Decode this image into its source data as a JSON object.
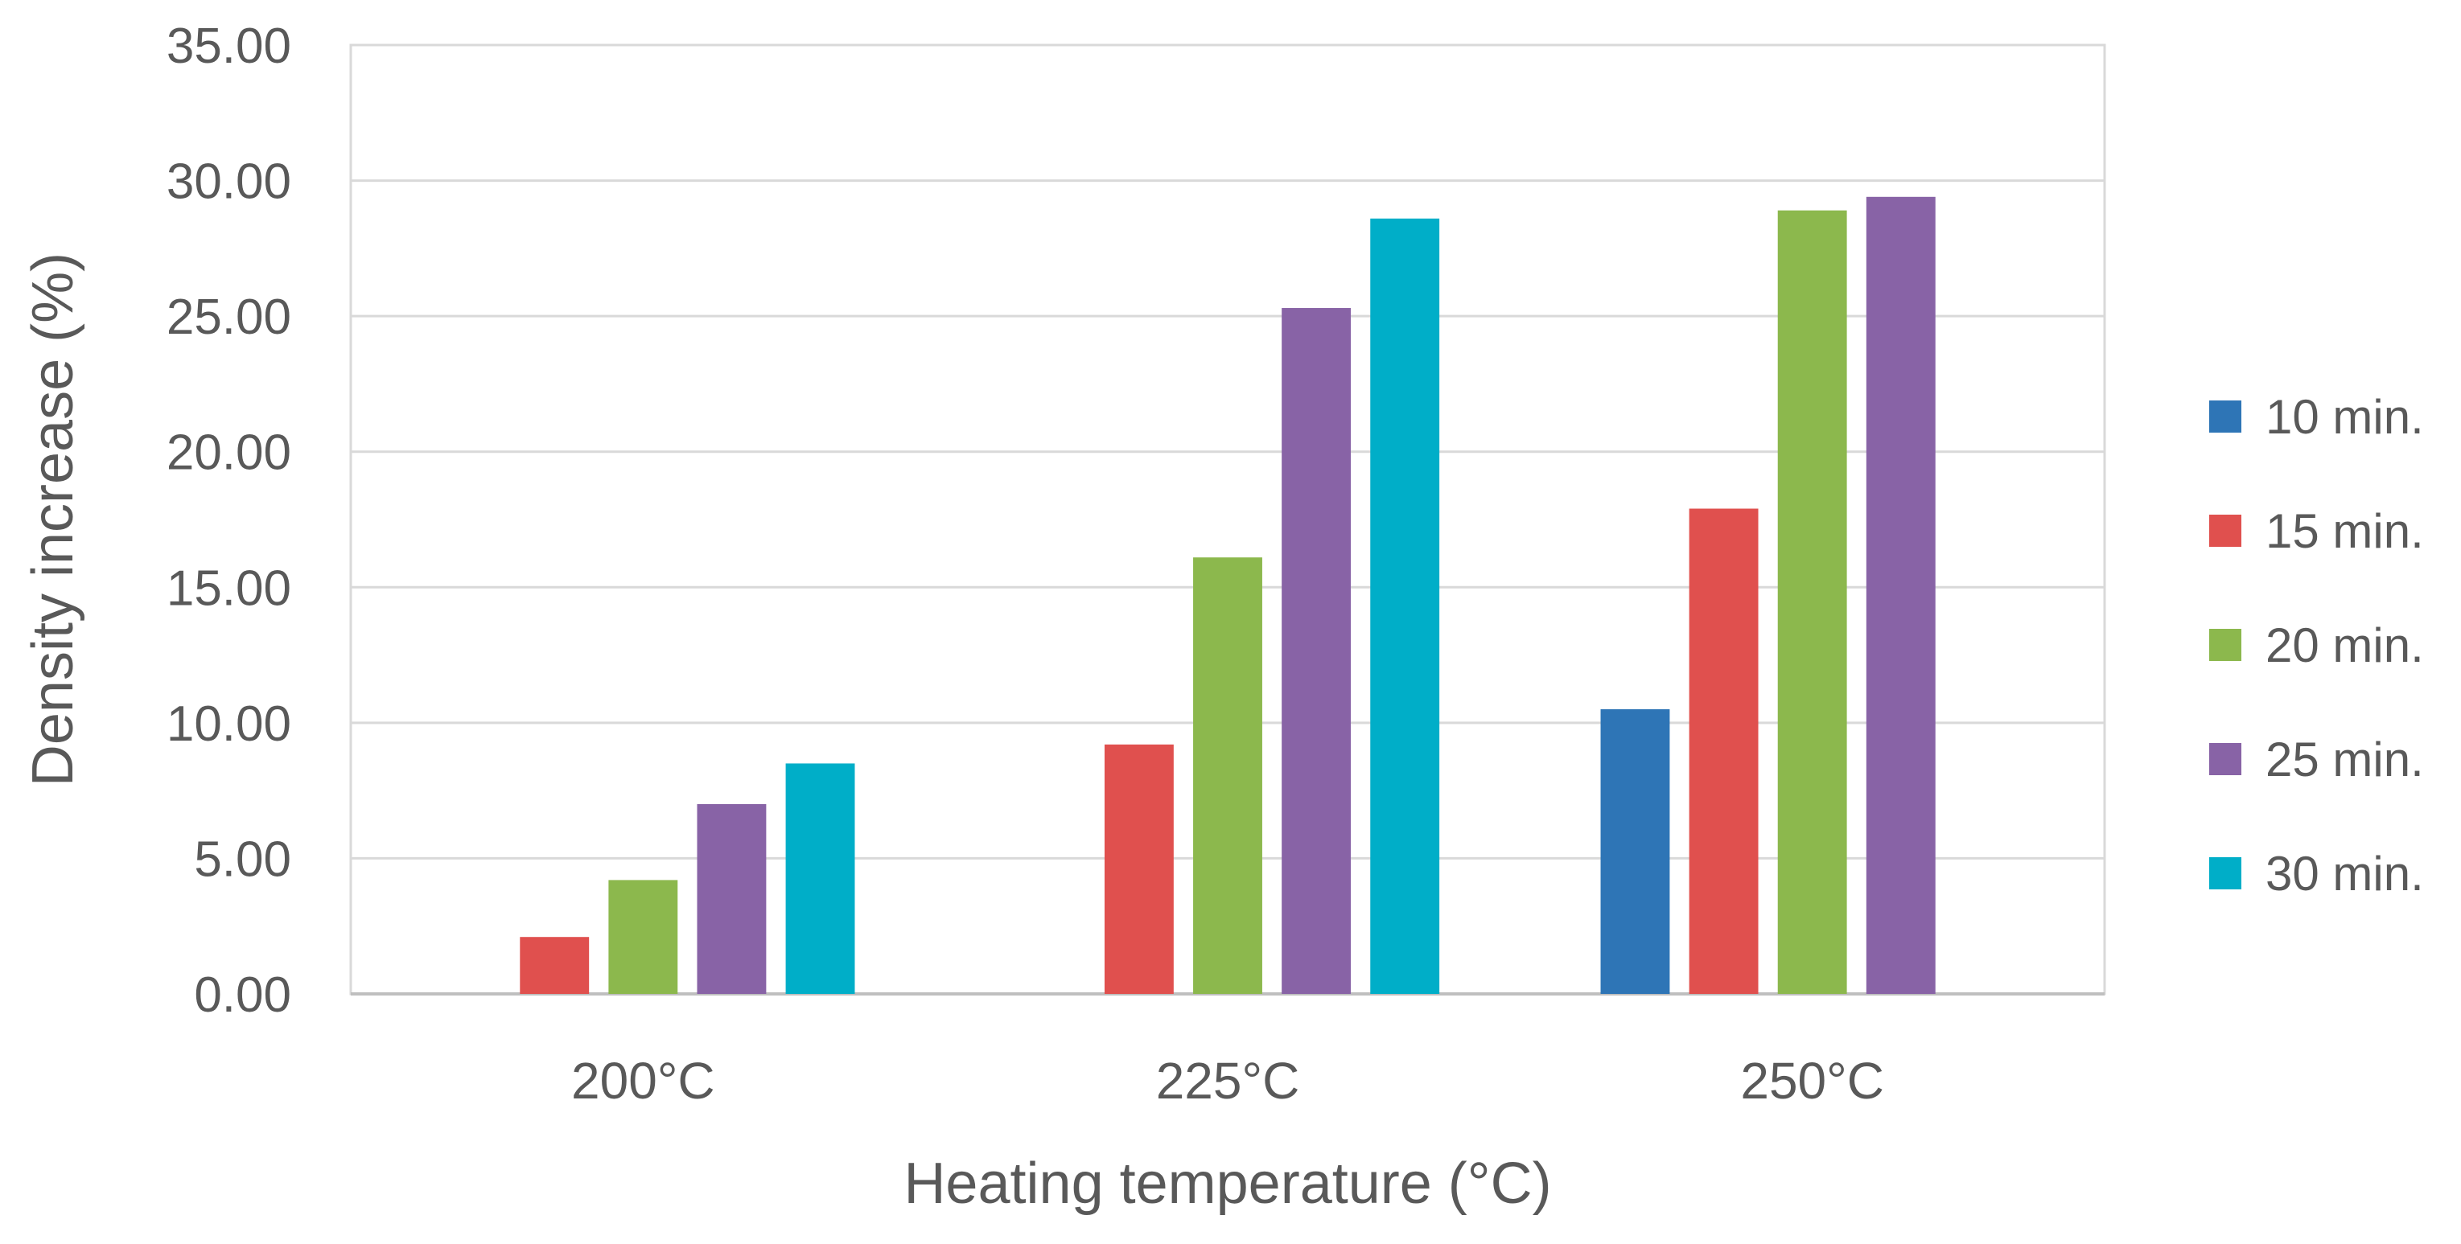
{
  "chart_data": {
    "type": "bar",
    "title": "",
    "xlabel": "Heating temperature (°C)",
    "ylabel": "Density increase (%)",
    "categories": [
      "200°C",
      "225°C",
      "250°C"
    ],
    "ylim": [
      0,
      35
    ],
    "yticks": [
      "0.00",
      "5.00",
      "10.00",
      "15.00",
      "20.00",
      "25.00",
      "30.00",
      "35.00"
    ],
    "grid": true,
    "legend_position": "right",
    "series": [
      {
        "name": "10 min.",
        "color": "#2E75B6",
        "values": [
          null,
          null,
          10.5
        ]
      },
      {
        "name": "15 min.",
        "color": "#E0504E",
        "values": [
          2.1,
          9.2,
          17.9
        ]
      },
      {
        "name": "20 min.",
        "color": "#8CB84D",
        "values": [
          4.2,
          16.1,
          28.9
        ]
      },
      {
        "name": "25 min.",
        "color": "#8863A6",
        "values": [
          7.0,
          25.3,
          29.4
        ]
      },
      {
        "name": "30 min.",
        "color": "#00AEC8",
        "values": [
          8.5,
          28.6,
          null
        ]
      }
    ]
  }
}
